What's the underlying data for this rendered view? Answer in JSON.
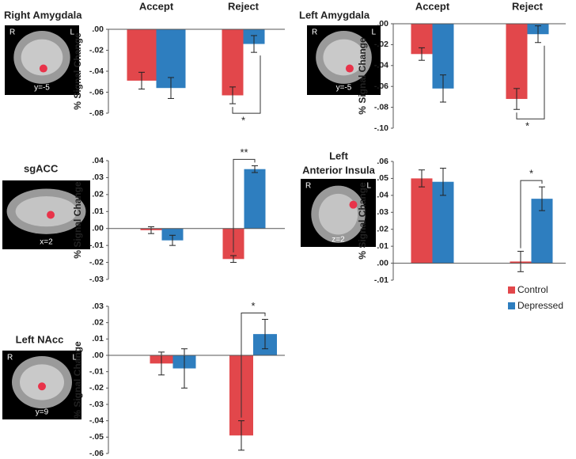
{
  "chart_data": [
    {
      "type": "bar",
      "title": "Right Amygdala",
      "ylabel": "% Signal Change",
      "categories": [
        "Accept",
        "Reject"
      ],
      "series": [
        {
          "color": "#e2474b",
          "values": [
            -0.049,
            -0.063
          ],
          "errors": [
            0.008,
            0.008
          ]
        },
        {
          "color": "#2e7ebf",
          "values": [
            -0.056,
            -0.014
          ],
          "errors": [
            0.01,
            0.008
          ]
        }
      ],
      "ylim": [
        -0.08,
        0
      ],
      "yticks": [
        {
          "value": 0,
          "label": ".00"
        },
        {
          "value": -0.02,
          "label": "-.02"
        },
        {
          "value": -0.04,
          "label": "-.04"
        },
        {
          "value": -0.06,
          "label": "-.06"
        },
        {
          "value": -0.08,
          "label": "-.08"
        }
      ],
      "significance": {
        "label": "*",
        "side": "below"
      },
      "brain": {
        "left": "R",
        "right": "L",
        "slice": "y=-5"
      }
    },
    {
      "type": "bar",
      "title": "Left Amygdala",
      "ylabel": "% Signal Change",
      "categories": [
        "Accept",
        "Reject"
      ],
      "series": [
        {
          "color": "#e2474b",
          "values": [
            -0.029,
            -0.072
          ],
          "errors": [
            0.006,
            0.01
          ]
        },
        {
          "color": "#2e7ebf",
          "values": [
            -0.062,
            -0.01
          ],
          "errors": [
            0.013,
            0.008
          ]
        }
      ],
      "ylim": [
        -0.1,
        0
      ],
      "yticks": [
        {
          "value": 0,
          "label": ".00"
        },
        {
          "value": -0.02,
          "label": "-.02"
        },
        {
          "value": -0.04,
          "label": "-.04"
        },
        {
          "value": -0.06,
          "label": "-.06"
        },
        {
          "value": -0.08,
          "label": "-.08"
        },
        {
          "value": -0.1,
          "label": "-.10"
        }
      ],
      "significance": {
        "label": "*",
        "side": "below"
      },
      "brain": {
        "left": "R",
        "right": "L",
        "slice": "y=-5"
      }
    },
    {
      "type": "bar",
      "title": "sgACC",
      "ylabel": "% Signal Change",
      "categories": [
        null,
        null
      ],
      "series": [
        {
          "color": "#e2474b",
          "values": [
            -0.001,
            -0.018
          ],
          "errors": [
            0.002,
            0.002
          ]
        },
        {
          "color": "#2e7ebf",
          "values": [
            -0.007,
            0.035
          ],
          "errors": [
            0.003,
            0.002
          ]
        }
      ],
      "ylim": [
        -0.03,
        0.04
      ],
      "yticks": [
        {
          "value": 0.04,
          "label": ".04"
        },
        {
          "value": 0.03,
          "label": ".03"
        },
        {
          "value": 0.02,
          "label": ".02"
        },
        {
          "value": 0.01,
          "label": ".01"
        },
        {
          "value": 0,
          "label": ".00"
        },
        {
          "value": -0.01,
          "label": "-.01"
        },
        {
          "value": -0.02,
          "label": "-.02"
        },
        {
          "value": -0.03,
          "label": "-.03"
        }
      ],
      "significance": {
        "label": "**",
        "side": "above"
      },
      "brain": {
        "slice": "x=2"
      }
    },
    {
      "type": "bar",
      "title": [
        "Left",
        "Anterior Insula"
      ],
      "ylabel": "% Signal Change",
      "categories": [
        null,
        null
      ],
      "series": [
        {
          "name": "Control",
          "color": "#e2474b",
          "values": [
            0.05,
            0.001
          ],
          "errors": [
            0.005,
            0.006
          ]
        },
        {
          "name": "Depressed",
          "color": "#2e7ebf",
          "values": [
            0.048,
            0.038
          ],
          "errors": [
            0.008,
            0.007
          ]
        }
      ],
      "ylim": [
        -0.01,
        0.06
      ],
      "yticks": [
        {
          "value": 0.06,
          "label": ".06"
        },
        {
          "value": 0.05,
          "label": ".05"
        },
        {
          "value": 0.04,
          "label": ".04"
        },
        {
          "value": 0.03,
          "label": ".03"
        },
        {
          "value": 0.02,
          "label": ".02"
        },
        {
          "value": 0.01,
          "label": ".01"
        },
        {
          "value": 0,
          "label": ".00"
        },
        {
          "value": -0.01,
          "label": "-.01"
        }
      ],
      "significance": {
        "label": "*",
        "side": "above"
      },
      "brain": {
        "left": "R",
        "right": "L",
        "slice": "z=2"
      }
    },
    {
      "type": "bar",
      "title": "Left NAcc",
      "ylabel": "% Signal Change",
      "categories": [
        null,
        null
      ],
      "series": [
        {
          "color": "#e2474b",
          "values": [
            -0.005,
            -0.049
          ],
          "errors": [
            0.007,
            0.009
          ]
        },
        {
          "color": "#2e7ebf",
          "values": [
            -0.008,
            0.013
          ],
          "errors": [
            0.012,
            0.009
          ]
        }
      ],
      "ylim": [
        -0.06,
        0.03
      ],
      "yticks": [
        {
          "value": 0.03,
          "label": ".03"
        },
        {
          "value": 0.02,
          "label": ".02"
        },
        {
          "value": 0.01,
          "label": ".01"
        },
        {
          "value": 0,
          "label": ".00"
        },
        {
          "value": -0.01,
          "label": "-.01"
        },
        {
          "value": -0.02,
          "label": "-.02"
        },
        {
          "value": -0.03,
          "label": "-.03"
        },
        {
          "value": -0.04,
          "label": "-.04"
        },
        {
          "value": -0.05,
          "label": "-.05"
        },
        {
          "value": -0.06,
          "label": "-.06"
        }
      ],
      "significance": {
        "label": "*",
        "side": "above"
      },
      "brain": {
        "left": "R",
        "right": "L",
        "slice": "y=9"
      }
    }
  ]
}
